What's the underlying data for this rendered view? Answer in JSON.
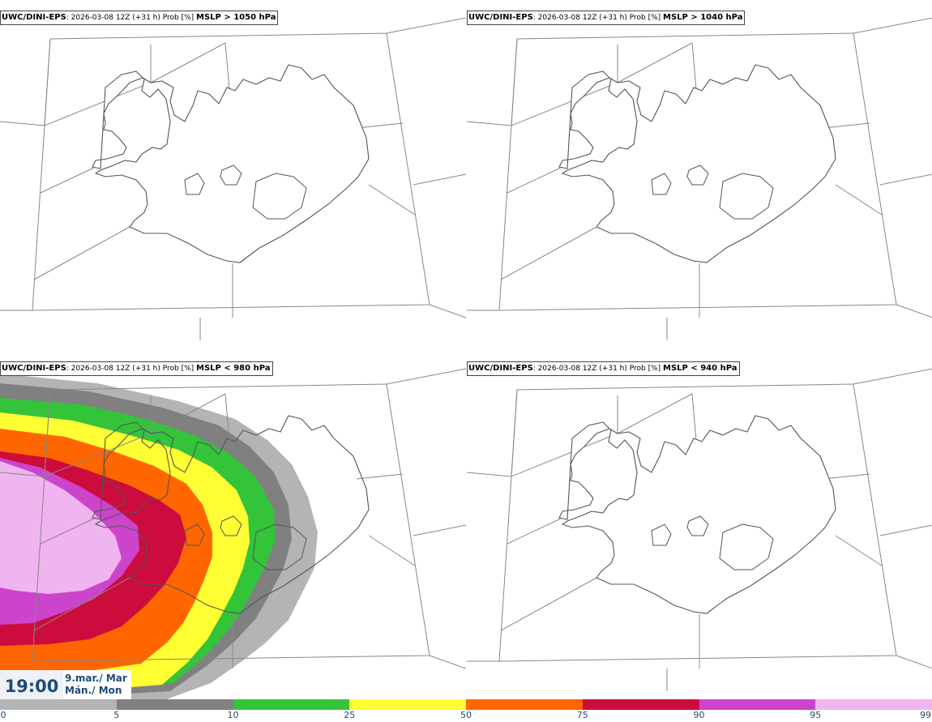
{
  "panels": [
    {
      "model": "UWC/DINI-EPS",
      "run_info": ": 2026-03-08 12Z (+31 h) Prob [%] ",
      "field": "MSLP > 1050 hPa"
    },
    {
      "model": "UWC/DINI-EPS",
      "run_info": ": 2026-03-08 12Z (+31 h) Prob [%] ",
      "field": "MSLP > 1040 hPa"
    },
    {
      "model": "UWC/DINI-EPS",
      "run_info": ": 2026-03-08 12Z (+31 h) Prob [%] ",
      "field": "MSLP < 980 hPa"
    },
    {
      "model": "UWC/DINI-EPS",
      "run_info": ": 2026-03-08 12Z (+31 h) Prob [%] ",
      "field": "MSLP < 940 hPa"
    }
  ],
  "valid_time": {
    "time": "19:00",
    "date_line1": "9.mar./ Mar",
    "date_line2": "Mán./ Mon"
  },
  "colorbar": {
    "ticks": [
      "0",
      "5",
      "10",
      "25",
      "50",
      "75",
      "90",
      "95",
      "99"
    ],
    "colors": [
      "#ffffff",
      "#b4b4b4",
      "#808080",
      "#33c43a",
      "#ffff33",
      "#ff6600",
      "#cc0c3c",
      "#cc44cc",
      "#f0b4f0"
    ]
  }
}
